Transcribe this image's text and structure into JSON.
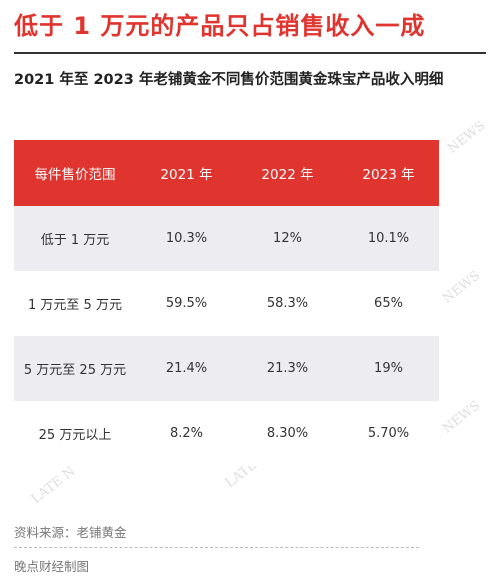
{
  "title": "低于 1 万元的产品只占销售收入一成",
  "subtitle": "2021 年至 2023 年老铺黄金不同售价范围黄金珠宝产品收入明细",
  "table": {
    "headers": [
      "每件售价范围",
      "2021 年",
      "2022 年",
      "2023 年"
    ],
    "rows": [
      [
        "低于 1 万元",
        "10.3%",
        "12%",
        "10.1%"
      ],
      [
        "1 万元至 5 万元",
        "59.5%",
        "58.3%",
        "65%"
      ],
      [
        "5 万元至 25 万元",
        "21.4%",
        "21.3%",
        "19%"
      ],
      [
        "25 万元以上",
        "8.2%",
        "8.30%",
        "5.70%"
      ]
    ]
  },
  "footer": {
    "source": "资料来源：老铺黄金",
    "credit": "晚点财经制图"
  },
  "watermarks": [
    "NEWS",
    "NEWS",
    "NEWS",
    "LATE N",
    "LATE N"
  ],
  "colors": {
    "accent": "#e0342f",
    "row_alt": "#ececf1"
  }
}
